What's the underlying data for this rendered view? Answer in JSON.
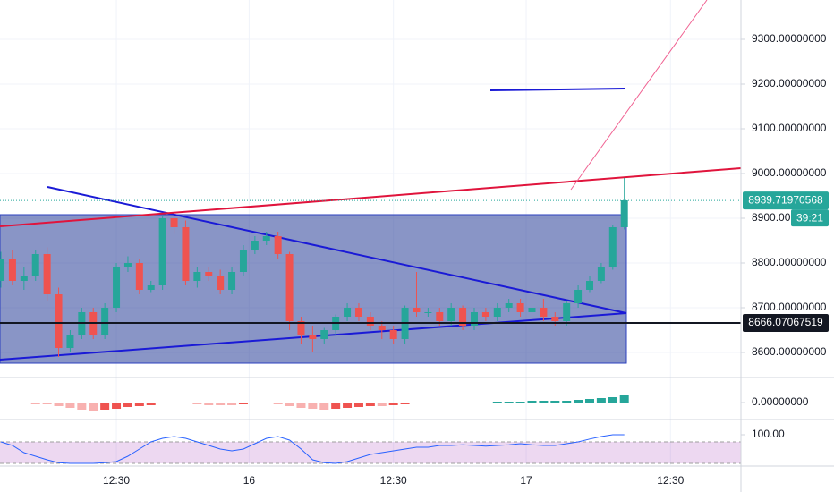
{
  "chart_data": [
    {
      "type": "candlestick",
      "x": [
        2.5,
        3.5,
        4.5,
        5.5,
        6.5,
        7.5,
        8.5,
        9.5,
        10.5,
        11.5,
        12.5,
        13.5,
        14.5,
        15.5,
        16.5,
        17.5,
        18.5,
        19.5,
        20.5,
        21.5,
        22.5,
        23.5,
        24.5,
        25.5,
        26.5,
        27.5,
        28.5,
        29.5,
        30.5,
        31.5,
        32.5,
        33.5,
        34.5,
        35.5,
        36.5,
        37.5,
        38.5,
        39.5,
        40.5,
        41.5,
        42.5,
        43.5,
        44.5,
        45.5,
        46.5,
        47.5,
        48.5,
        49.5,
        50.5,
        51.5,
        52.5,
        53.5,
        54.5,
        55.5,
        56.5
      ],
      "open": [
        8760,
        8810,
        8760,
        8770,
        8820,
        8730,
        8610,
        8640,
        8690,
        8640,
        8700,
        8790,
        8800,
        8740,
        8750,
        8900,
        8880,
        8760,
        8780,
        8770,
        8740,
        8780,
        8830,
        8850,
        8860,
        8820,
        8670,
        8640,
        8630,
        8650,
        8680,
        8700,
        8680,
        8660,
        8650,
        8630,
        8700,
        8690,
        8690,
        8670,
        8700,
        8660,
        8690,
        8680,
        8700,
        8710,
        8690,
        8700,
        8680,
        8670,
        8710,
        8740,
        8760,
        8790,
        8880
      ],
      "high": [
        8825,
        8830,
        8790,
        8830,
        8835,
        8745,
        8650,
        8700,
        8700,
        8710,
        8800,
        8815,
        8810,
        8760,
        8905,
        8910,
        8895,
        8790,
        8790,
        8785,
        8790,
        8840,
        8860,
        8870,
        8870,
        8825,
        8680,
        8660,
        8655,
        8685,
        8710,
        8710,
        8690,
        8670,
        8660,
        8705,
        8780,
        8700,
        8700,
        8710,
        8705,
        8700,
        8700,
        8710,
        8720,
        8720,
        8710,
        8720,
        8690,
        8715,
        8750,
        8770,
        8800,
        8885,
        8990
      ],
      "low": [
        8745,
        8750,
        8740,
        8760,
        8715,
        8590,
        8600,
        8630,
        8630,
        8630,
        8690,
        8780,
        8730,
        8735,
        8740,
        8865,
        8750,
        8745,
        8760,
        8730,
        8730,
        8770,
        8820,
        8840,
        8810,
        8650,
        8620,
        8600,
        8620,
        8640,
        8670,
        8670,
        8650,
        8630,
        8620,
        8620,
        8680,
        8680,
        8660,
        8660,
        8650,
        8650,
        8670,
        8670,
        8690,
        8680,
        8680,
        8670,
        8660,
        8660,
        8700,
        8735,
        8755,
        8785,
        8875
      ],
      "close": [
        8810,
        8760,
        8770,
        8820,
        8730,
        8610,
        8640,
        8690,
        8640,
        8700,
        8790,
        8800,
        8740,
        8750,
        8900,
        8880,
        8760,
        8780,
        8770,
        8740,
        8780,
        8830,
        8850,
        8860,
        8820,
        8670,
        8640,
        8630,
        8650,
        8680,
        8700,
        8680,
        8660,
        8650,
        8630,
        8700,
        8690,
        8690,
        8670,
        8700,
        8660,
        8690,
        8680,
        8700,
        8710,
        8690,
        8700,
        8680,
        8670,
        8710,
        8740,
        8760,
        8790,
        8880,
        8940
      ],
      "up_color": "#26a69a",
      "down_color": "#ef5350",
      "xlim": [
        2.42,
        66.6
      ],
      "xticks": [
        {
          "value": 12.5,
          "label": "12:30"
        },
        {
          "value": 24,
          "label": "16"
        },
        {
          "value": 36.5,
          "label": "12:30"
        },
        {
          "value": 48,
          "label": "17"
        },
        {
          "value": 60.5,
          "label": "12:30"
        }
      ],
      "ylim": [
        8544,
        9388
      ],
      "yticks": [
        {
          "value": 9300,
          "label": "9300.00000000"
        },
        {
          "value": 9200,
          "label": "9200.00000000"
        },
        {
          "value": 9100,
          "label": "9100.00000000"
        },
        {
          "value": 9000,
          "label": "9000.00000000"
        },
        {
          "value": 8900,
          "label": "8900.00"
        },
        {
          "value": 8800,
          "label": "8800.00000000"
        },
        {
          "value": 8700,
          "label": "8700.00000000"
        },
        {
          "value": 8600,
          "label": "8600.00000000"
        }
      ],
      "last_price": {
        "value": 8939.71970568,
        "label": "8939.71970568"
      },
      "countdown": "39:21",
      "line_price": {
        "value": 8666.07067519,
        "label": "8666.07067519"
      },
      "grid": true
    },
    {
      "type": "bar",
      "values": [
        0,
        0,
        -1,
        -2,
        -2,
        -4,
        -6,
        -8,
        -9,
        -8,
        -7,
        -5,
        -4,
        -3,
        -1,
        0,
        -1,
        -2,
        -3,
        -3,
        -3,
        -2,
        -1,
        -1,
        -2,
        -4,
        -6,
        -7,
        -8,
        -7,
        -6,
        -5,
        -4,
        -4,
        -3,
        -2,
        -1,
        -1,
        -1,
        -1,
        -1,
        0,
        0,
        1,
        1,
        1,
        2,
        2,
        2,
        2,
        3,
        4,
        5,
        6,
        8
      ],
      "up_color": "#26a69a",
      "down_color": "#ef5350",
      "ylim": [
        -18,
        27
      ],
      "yticks": [
        {
          "value": 0,
          "label": "0.00000000"
        }
      ]
    },
    {
      "type": "line",
      "values": [
        80,
        70,
        50,
        40,
        30,
        22,
        20,
        20,
        20,
        22,
        25,
        40,
        60,
        80,
        90,
        95,
        90,
        80,
        70,
        60,
        55,
        60,
        75,
        90,
        95,
        85,
        60,
        30,
        22,
        20,
        25,
        35,
        45,
        50,
        55,
        60,
        65,
        65,
        70,
        70,
        72,
        70,
        68,
        70,
        72,
        75,
        72,
        70,
        70,
        75,
        80,
        88,
        95,
        100,
        100
      ],
      "color": "#2962ff",
      "band": [
        20,
        80
      ],
      "ylim": [
        15,
        140
      ],
      "yticks": [
        {
          "value": 100,
          "label": "100.00"
        }
      ]
    }
  ]
}
